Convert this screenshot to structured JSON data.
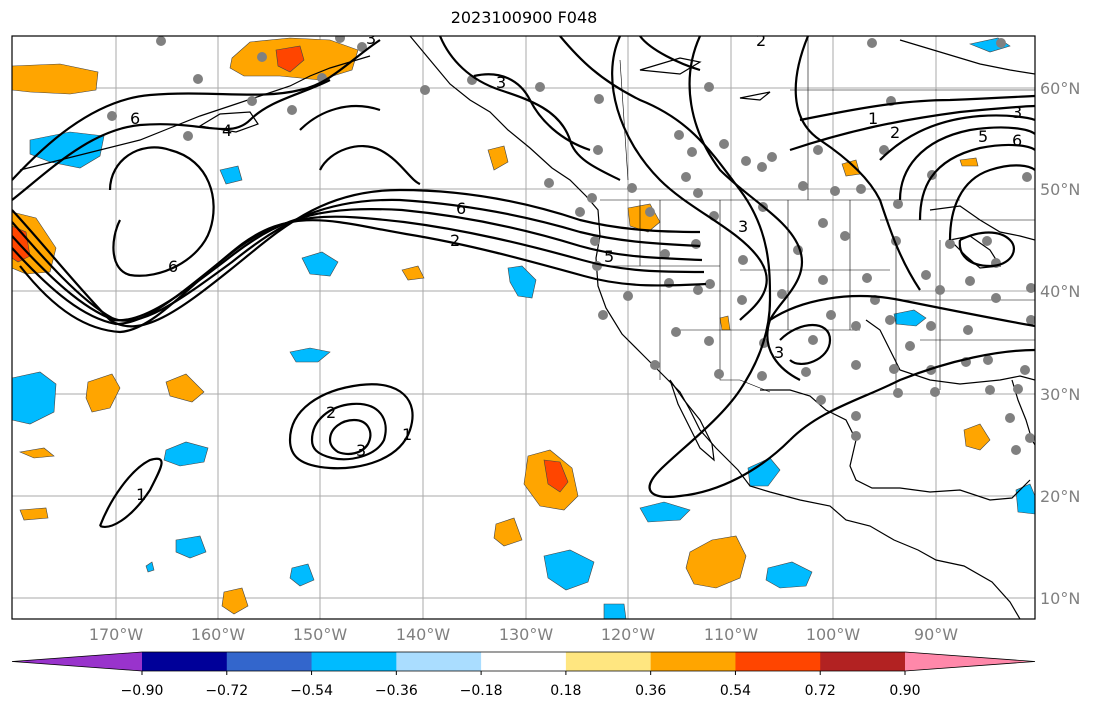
{
  "title": "2023100900 F048",
  "map": {
    "lat_labels": [
      "60°N",
      "50°N",
      "40°N",
      "30°N",
      "20°N",
      "10°N"
    ],
    "lon_labels": [
      "170°W",
      "160°W",
      "150°W",
      "140°W",
      "130°W",
      "120°W",
      "110°W",
      "100°W",
      "90°W"
    ],
    "contour_labels": [
      "6",
      "6",
      "6",
      "2",
      "4",
      "5",
      "3",
      "3",
      "3",
      "1",
      "2",
      "3",
      "5",
      "6",
      "2",
      "3",
      "1",
      "1",
      "2",
      "3"
    ]
  },
  "colorbar": {
    "ticks": [
      "−0.90",
      "−0.72",
      "−0.54",
      "−0.36",
      "−0.18",
      "0.18",
      "0.36",
      "0.54",
      "0.72",
      "0.90"
    ],
    "colors": [
      "#9933cc",
      "#000099",
      "#3366cc",
      "#00bbff",
      "#aaddff",
      "#ffffff",
      "#ffe680",
      "#ffa500",
      "#ff4500",
      "#b22222",
      "#ff88aa"
    ]
  },
  "colors": {
    "frame": "#000000",
    "grid": "#aaaaaa",
    "station": "#808080",
    "coast": "#000000"
  }
}
